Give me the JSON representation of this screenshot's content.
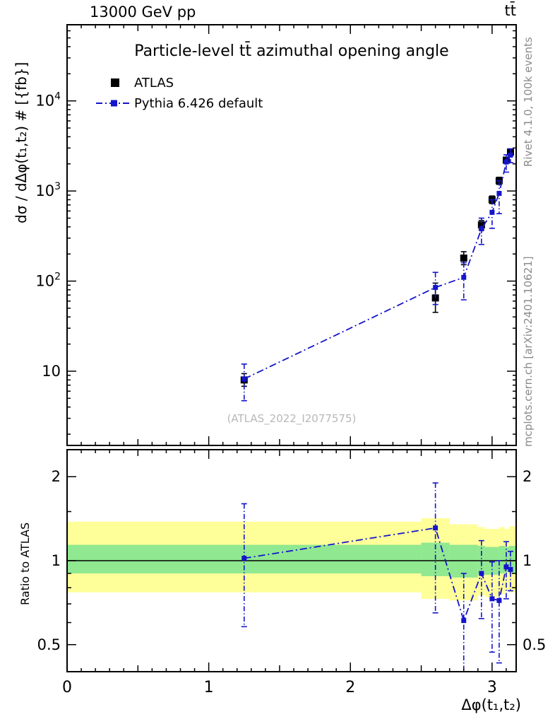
{
  "header": {
    "left": "13000 GeV pp",
    "right": "tt̄"
  },
  "title": "Particle-level tt̄ azimuthal opening angle",
  "watermark": "(ATLAS_2022_I2077575)",
  "credits_top": "Rivet 4.1.0, 100k events",
  "credits_bottom": "mcplots.cern.ch [arXiv:2401.10621]",
  "axes": {
    "ylabel_main": "dσ / dΔφ(t₁,t₂) # [{fb}]",
    "ylabel_ratio": "Ratio to ATLAS",
    "xlabel": "Δφ(t₁,t₂)"
  },
  "chart_data": {
    "type": "line",
    "title": "Particle-level tt̄ azimuthal opening angle",
    "xlabel": "Δφ(t₁,t₂)",
    "ylabel": "dσ / dΔφ(t₁,t₂) # [{fb}]",
    "xlim": [
      0,
      3.17
    ],
    "ylim_main": [
      1.5,
      70000
    ],
    "ylim_ratio": [
      0.4,
      2.5
    ],
    "x_major_ticks": [
      0,
      1,
      2,
      3
    ],
    "y_major_ticks_main": [
      10,
      100,
      1000,
      10000
    ],
    "y_major_ticks_ratio": [
      0.5,
      1,
      2
    ],
    "y_minor_ticks_ratio": [
      0.6,
      0.7,
      0.8,
      0.9,
      1.5
    ],
    "legend_position": "top-left",
    "grid": false,
    "colors": {
      "atlas": "#000000",
      "pythia": "#1414cc",
      "band_green": "#90e890",
      "band_yellow": "#ffff99"
    },
    "series": [
      {
        "name": "ATLAS",
        "marker": "square",
        "marker_size": 10,
        "color_key": "atlas",
        "draw_line": false,
        "x": [
          1.25,
          2.6,
          2.8,
          2.925,
          3.0,
          3.05,
          3.1,
          3.13
        ],
        "y": [
          8,
          65,
          180,
          420,
          800,
          1300,
          2200,
          2700
        ],
        "y_err_lo": [
          6.8,
          45,
          152,
          372,
          725,
          1185,
          2040,
          2490
        ],
        "y_err_hi": [
          9.4,
          95,
          212,
          470,
          880,
          1420,
          2360,
          2910
        ]
      },
      {
        "name": "Pythia 6.426 default",
        "marker": "square",
        "marker_size": 7,
        "color_key": "pythia",
        "draw_line": true,
        "line_style": "dashdot",
        "x": [
          1.25,
          2.6,
          2.8,
          2.925,
          3.0,
          3.05,
          3.1,
          3.13
        ],
        "y": [
          8.2,
          85,
          110,
          380,
          580,
          940,
          2100,
          2500
        ],
        "y_err_lo": [
          4.7,
          55,
          62,
          255,
          385,
          560,
          1620,
          2060
        ],
        "y_err_hi": [
          12,
          125,
          160,
          500,
          800,
          1300,
          2520,
          2940
        ]
      }
    ],
    "ratio": {
      "reference": "ATLAS",
      "bin_edges": [
        0,
        2.5,
        2.7,
        2.9,
        2.95,
        3.05,
        3.09,
        3.12,
        3.17
      ],
      "band_yellow_lo": [
        0.77,
        0.73,
        0.72,
        0.75,
        0.74,
        0.76,
        0.78,
        0.77
      ],
      "band_yellow_hi": [
        1.38,
        1.42,
        1.35,
        1.32,
        1.3,
        1.32,
        1.3,
        1.33
      ],
      "band_green_lo": [
        0.9,
        0.88,
        0.87,
        0.89,
        0.89,
        0.9,
        0.91,
        0.9
      ],
      "band_green_hi": [
        1.14,
        1.16,
        1.14,
        1.13,
        1.12,
        1.13,
        1.12,
        1.13
      ],
      "x": [
        1.25,
        2.6,
        2.8,
        2.925,
        3.0,
        3.05,
        3.1,
        3.13
      ],
      "y": [
        1.02,
        1.31,
        0.61,
        0.9,
        0.73,
        0.72,
        0.95,
        0.93
      ],
      "y_err_lo": [
        0.58,
        0.65,
        0.33,
        0.62,
        0.47,
        0.43,
        0.73,
        0.78
      ],
      "y_err_hi": [
        1.6,
        1.9,
        0.9,
        1.18,
        0.99,
        1.0,
        1.17,
        1.08
      ]
    }
  }
}
